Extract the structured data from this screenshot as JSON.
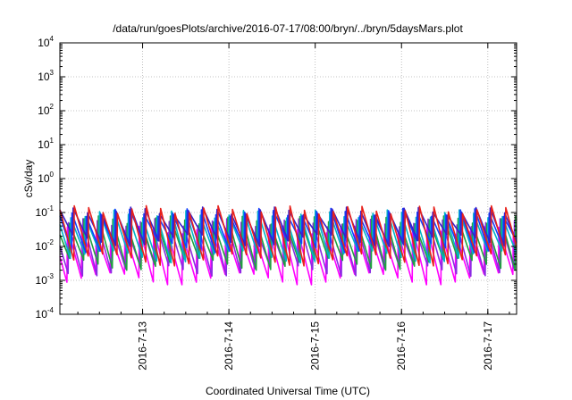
{
  "chart_data": {
    "type": "line",
    "title": "/data/run/goesPlots/archive/2016-07-17/08:00/bryn/../bryn/5daysMars.plot",
    "xlabel": "Coordinated Universal Time (UTC)",
    "ylabel": "cSv/day",
    "y_scale": "log",
    "ylim": [
      "1e-4",
      "1e4"
    ],
    "xlim": [
      "2016-07-12 01:00",
      "2016-07-17 08:00"
    ],
    "grid": true,
    "y_ticks": [
      {
        "base": "10",
        "exp": "-4"
      },
      {
        "base": "10",
        "exp": "-3"
      },
      {
        "base": "10",
        "exp": "-2"
      },
      {
        "base": "10",
        "exp": "-1"
      },
      {
        "base": "10",
        "exp": "0"
      },
      {
        "base": "10",
        "exp": "1"
      },
      {
        "base": "10",
        "exp": "2"
      },
      {
        "base": "10",
        "exp": "3"
      },
      {
        "base": "10",
        "exp": "4"
      }
    ],
    "x_ticks": [
      "2016-7-13",
      "2016-7-14",
      "2016-7-15",
      "2016-7-16",
      "2016-7-17"
    ],
    "sawtooth_period_hours": 4,
    "series": [
      {
        "color": "#e8201a",
        "peak": 0.12,
        "trough": 0.004
      },
      {
        "color": "#3a20c8",
        "peak": 0.11,
        "trough": 0.015
      },
      {
        "color": "#1040ff",
        "peak": 0.1,
        "trough": 0.01
      },
      {
        "color": "#00b4c8",
        "peak": 0.09,
        "trough": 0.005
      },
      {
        "color": "#20a040",
        "peak": 0.06,
        "trough": 0.003
      },
      {
        "color": "#8a2be2",
        "peak": 0.05,
        "trough": 0.002
      },
      {
        "color": "#ff00ff",
        "peak": 0.03,
        "trough": 0.0011
      }
    ]
  }
}
